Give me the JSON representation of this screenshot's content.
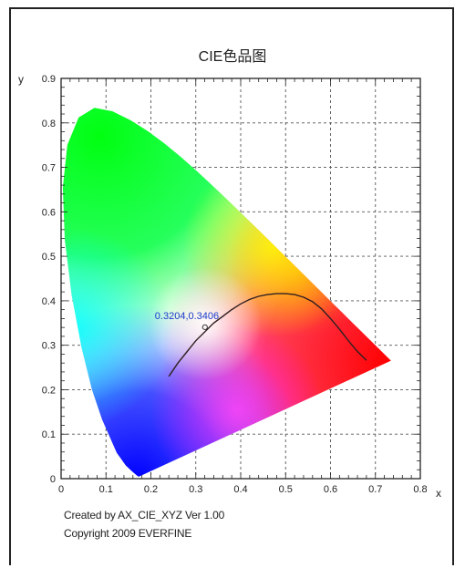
{
  "chart_data": {
    "type": "scatter",
    "title": "CIE色品图",
    "xlabel": "x",
    "ylabel": "y",
    "xlim": [
      0,
      0.8
    ],
    "ylim": [
      0,
      0.9
    ],
    "xticks": [
      "0",
      "0.1",
      "0.2",
      "0.3",
      "0.4",
      "0.5",
      "0.6",
      "0.7",
      "0.8"
    ],
    "yticks": [
      "0",
      "0.1",
      "0.2",
      "0.3",
      "0.4",
      "0.5",
      "0.6",
      "0.7",
      "0.8",
      "0.9"
    ],
    "grid": true,
    "spectral_locus": [
      [
        0.1741,
        0.005
      ],
      [
        0.1721,
        0.0048
      ],
      [
        0.1689,
        0.0069
      ],
      [
        0.1644,
        0.0109
      ],
      [
        0.1566,
        0.0177
      ],
      [
        0.144,
        0.0297
      ],
      [
        0.1241,
        0.0578
      ],
      [
        0.0913,
        0.1327
      ],
      [
        0.0687,
        0.2007
      ],
      [
        0.0454,
        0.295
      ],
      [
        0.0235,
        0.4127
      ],
      [
        0.0082,
        0.5384
      ],
      [
        0.0039,
        0.6548
      ],
      [
        0.0139,
        0.7502
      ],
      [
        0.0389,
        0.812
      ],
      [
        0.0743,
        0.8338
      ],
      [
        0.1142,
        0.8262
      ],
      [
        0.1547,
        0.8059
      ],
      [
        0.1929,
        0.7816
      ],
      [
        0.2296,
        0.7543
      ],
      [
        0.2658,
        0.7243
      ],
      [
        0.3016,
        0.6923
      ],
      [
        0.3373,
        0.6589
      ],
      [
        0.3731,
        0.6245
      ],
      [
        0.4087,
        0.5896
      ],
      [
        0.4441,
        0.5547
      ],
      [
        0.4788,
        0.5202
      ],
      [
        0.5125,
        0.4866
      ],
      [
        0.5448,
        0.4544
      ],
      [
        0.5752,
        0.4242
      ],
      [
        0.6029,
        0.3965
      ],
      [
        0.627,
        0.3725
      ],
      [
        0.6482,
        0.3514
      ],
      [
        0.6658,
        0.334
      ],
      [
        0.6915,
        0.3083
      ],
      [
        0.714,
        0.2859
      ],
      [
        0.7347,
        0.2653
      ]
    ],
    "planckian_locus": [
      [
        0.24,
        0.23
      ],
      [
        0.26,
        0.26
      ],
      [
        0.28,
        0.285
      ],
      [
        0.3,
        0.31
      ],
      [
        0.32,
        0.33
      ],
      [
        0.34,
        0.35
      ],
      [
        0.36,
        0.365
      ],
      [
        0.38,
        0.38
      ],
      [
        0.4,
        0.393
      ],
      [
        0.42,
        0.403
      ],
      [
        0.44,
        0.41
      ],
      [
        0.46,
        0.414
      ],
      [
        0.48,
        0.416
      ],
      [
        0.5,
        0.416
      ],
      [
        0.52,
        0.414
      ],
      [
        0.54,
        0.408
      ],
      [
        0.56,
        0.398
      ],
      [
        0.58,
        0.382
      ],
      [
        0.6,
        0.36
      ],
      [
        0.62,
        0.336
      ],
      [
        0.64,
        0.31
      ],
      [
        0.66,
        0.286
      ],
      [
        0.68,
        0.266
      ]
    ],
    "marked_point": {
      "x": 0.3204,
      "y": 0.3406,
      "label": "0.3204,0.3406"
    }
  },
  "footer": {
    "line1": "Created by AX_CIE_XYZ Ver 1.00",
    "line2": "Copyright 2009 EVERFINE"
  }
}
